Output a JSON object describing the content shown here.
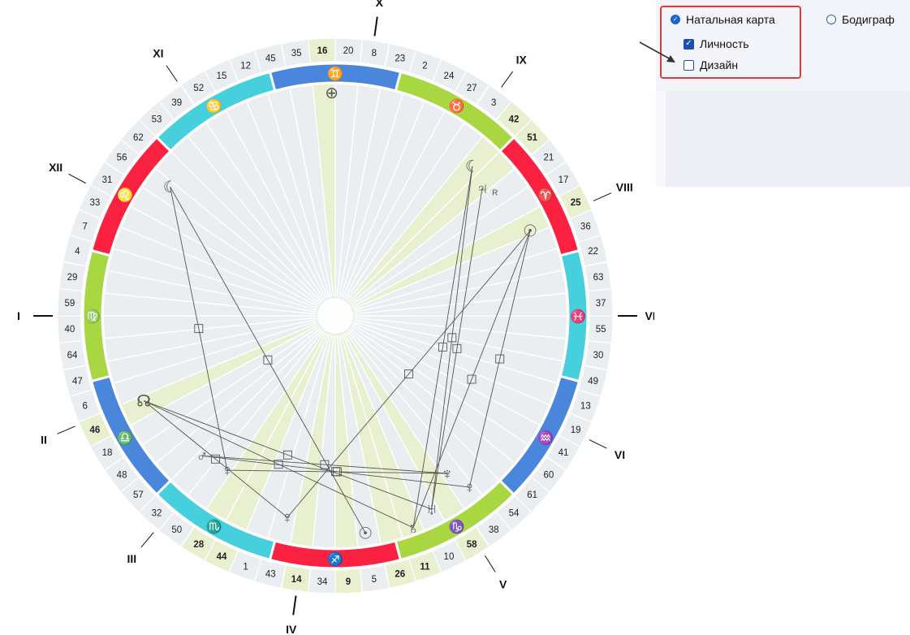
{
  "options": {
    "natal_chart": {
      "label": "Натальная карта",
      "checked": true
    },
    "bodygraph": {
      "label": "Бодиграф",
      "checked": false
    },
    "personality": {
      "label": "Личность",
      "checked": true
    },
    "design": {
      "label": "Дизайн",
      "checked": false
    }
  },
  "colors": {
    "fire": "#fb2141",
    "earth": "#a8d741",
    "air": "#4a86db",
    "water": "#46d0dd",
    "highlight": "#e8f0cf",
    "gate_bg": "#eaeef0"
  },
  "zodiac": [
    {
      "glyph": "♓",
      "start": 345,
      "color": "water"
    },
    {
      "glyph": "♈",
      "start": 15,
      "color": "fire"
    },
    {
      "glyph": "♉",
      "start": 45,
      "color": "earth"
    },
    {
      "glyph": "♊",
      "start": 75,
      "color": "air"
    },
    {
      "glyph": "♋",
      "start": 105,
      "color": "water"
    },
    {
      "glyph": "♌",
      "start": 135,
      "color": "fire"
    },
    {
      "glyph": "♍",
      "start": 165,
      "color": "earth"
    },
    {
      "glyph": "♎",
      "start": 195,
      "color": "air"
    },
    {
      "glyph": "♏",
      "start": 225,
      "color": "water"
    },
    {
      "glyph": "♐",
      "start": 255,
      "color": "fire"
    },
    {
      "glyph": "♑",
      "start": 285,
      "color": "earth"
    },
    {
      "glyph": "♒",
      "start": 315,
      "color": "air"
    }
  ],
  "gates": [
    {
      "n": "37",
      "a": 2.8
    },
    {
      "n": "63",
      "a": 8.4
    },
    {
      "n": "22",
      "a": 14.1
    },
    {
      "n": "36",
      "a": 19.7
    },
    {
      "n": "25",
      "a": 25.3,
      "hl": true
    },
    {
      "n": "17",
      "a": 30.9
    },
    {
      "n": "21",
      "a": 36.6
    },
    {
      "n": "51",
      "a": 42.2,
      "hl": true
    },
    {
      "n": "42",
      "a": 47.8,
      "hl": true
    },
    {
      "n": "3",
      "a": 53.4
    },
    {
      "n": "27",
      "a": 59.1
    },
    {
      "n": "24",
      "a": 64.7
    },
    {
      "n": "2",
      "a": 70.3
    },
    {
      "n": "23",
      "a": 75.9
    },
    {
      "n": "8",
      "a": 81.6
    },
    {
      "n": "20",
      "a": 87.2
    },
    {
      "n": "16",
      "a": 92.8,
      "hl": true
    },
    {
      "n": "35",
      "a": 98.4
    },
    {
      "n": "45",
      "a": 104.1
    },
    {
      "n": "12",
      "a": 109.7
    },
    {
      "n": "15",
      "a": 115.3
    },
    {
      "n": "52",
      "a": 120.9
    },
    {
      "n": "39",
      "a": 126.6
    },
    {
      "n": "53",
      "a": 132.2
    },
    {
      "n": "62",
      "a": 137.8
    },
    {
      "n": "56",
      "a": 143.4
    },
    {
      "n": "31",
      "a": 149.1
    },
    {
      "n": "33",
      "a": 154.7
    },
    {
      "n": "7",
      "a": 160.3
    },
    {
      "n": "4",
      "a": 165.9
    },
    {
      "n": "29",
      "a": 171.6
    },
    {
      "n": "59",
      "a": 177.2
    },
    {
      "n": "40",
      "a": 182.8
    },
    {
      "n": "64",
      "a": 188.4
    },
    {
      "n": "47",
      "a": 194.1
    },
    {
      "n": "6",
      "a": 199.7
    },
    {
      "n": "46",
      "a": 205.3,
      "hl": true
    },
    {
      "n": "18",
      "a": 210.9
    },
    {
      "n": "48",
      "a": 216.6
    },
    {
      "n": "57",
      "a": 222.2
    },
    {
      "n": "32",
      "a": 227.8
    },
    {
      "n": "50",
      "a": 233.4
    },
    {
      "n": "28",
      "a": 239.1,
      "hl": true
    },
    {
      "n": "44",
      "a": 244.7,
      "hl": true
    },
    {
      "n": "1",
      "a": 250.3
    },
    {
      "n": "43",
      "a": 255.9
    },
    {
      "n": "14",
      "a": 261.6,
      "hl": true
    },
    {
      "n": "34",
      "a": 267.2
    },
    {
      "n": "9",
      "a": 272.8,
      "hl": true
    },
    {
      "n": "5",
      "a": 278.4
    },
    {
      "n": "26",
      "a": 284.1,
      "hl": true
    },
    {
      "n": "11",
      "a": 289.7,
      "hl": true
    },
    {
      "n": "10",
      "a": 295.3
    },
    {
      "n": "58",
      "a": 300.9,
      "hl": true
    },
    {
      "n": "38",
      "a": 306.6
    },
    {
      "n": "54",
      "a": 312.2
    },
    {
      "n": "61",
      "a": 317.8
    },
    {
      "n": "60",
      "a": 323.4
    },
    {
      "n": "41",
      "a": 329.1
    },
    {
      "n": "19",
      "a": 334.7
    },
    {
      "n": "13",
      "a": 340.3
    },
    {
      "n": "49",
      "a": 345.9
    },
    {
      "n": "30",
      "a": 351.6
    },
    {
      "n": "55",
      "a": 357.2
    }
  ],
  "houses": [
    {
      "label": "I",
      "a": 180
    },
    {
      "label": "II",
      "a": 203
    },
    {
      "label": "III",
      "a": 230
    },
    {
      "label": "IV",
      "a": 262
    },
    {
      "label": "V",
      "a": 302
    },
    {
      "label": "VI",
      "a": 334
    },
    {
      "label": "VII",
      "a": 0
    },
    {
      "label": "VIII",
      "a": 24
    },
    {
      "label": "IX",
      "a": 54
    },
    {
      "label": "X",
      "a": 82
    },
    {
      "label": "XI",
      "a": 124
    },
    {
      "label": "XII",
      "a": 152
    }
  ],
  "planets": [
    {
      "id": "earth",
      "glyph": "⊕",
      "a": 90.9,
      "r": 275
    },
    {
      "id": "moon-left",
      "glyph": "☾",
      "a": 142,
      "r": 258
    },
    {
      "id": "moon-right",
      "glyph": "☾",
      "a": 47.5,
      "r": 250
    },
    {
      "id": "jupiter",
      "glyph": "♃",
      "a": 41,
      "r": 240,
      "suffix": "R"
    },
    {
      "id": "sun-right",
      "glyph": "☉",
      "a": 23.6,
      "r": 262
    },
    {
      "id": "node-left",
      "glyph": "☊",
      "a": 203.9,
      "r": 258
    },
    {
      "id": "mars",
      "glyph": "♂",
      "a": 226.4,
      "r": 238
    },
    {
      "id": "venus-left",
      "glyph": "♀",
      "a": 235,
      "r": 232
    },
    {
      "id": "venus-mid",
      "glyph": "♀",
      "a": 256.6,
      "r": 255
    },
    {
      "id": "sun-bottom",
      "glyph": "☉",
      "a": 277.9,
      "r": 270
    },
    {
      "id": "saturn",
      "glyph": "♄",
      "a": 290.2,
      "r": 278
    },
    {
      "id": "uranus",
      "glyph": "♅",
      "a": 296.5,
      "r": 266
    },
    {
      "id": "neptune",
      "glyph": "♆",
      "a": 305.4,
      "r": 238
    },
    {
      "id": "venus-right",
      "glyph": "♀",
      "a": 308.1,
      "r": 268
    }
  ],
  "aspects": [
    {
      "from": "moon-left",
      "to": "venus-left"
    },
    {
      "from": "moon-left",
      "to": "sun-bottom"
    },
    {
      "from": "node-left",
      "to": "venus-mid"
    },
    {
      "from": "node-left",
      "to": "uranus"
    },
    {
      "from": "node-left",
      "to": "saturn"
    },
    {
      "from": "moon-right",
      "to": "saturn"
    },
    {
      "from": "moon-right",
      "to": "uranus"
    },
    {
      "from": "jupiter",
      "to": "uranus"
    },
    {
      "from": "sun-right",
      "to": "venus-mid"
    },
    {
      "from": "sun-right",
      "to": "venus-right"
    },
    {
      "from": "sun-right",
      "to": "saturn"
    },
    {
      "from": "mars",
      "to": "neptune"
    },
    {
      "from": "venus-left",
      "to": "neptune"
    },
    {
      "from": "mars",
      "to": "venus-right"
    }
  ]
}
